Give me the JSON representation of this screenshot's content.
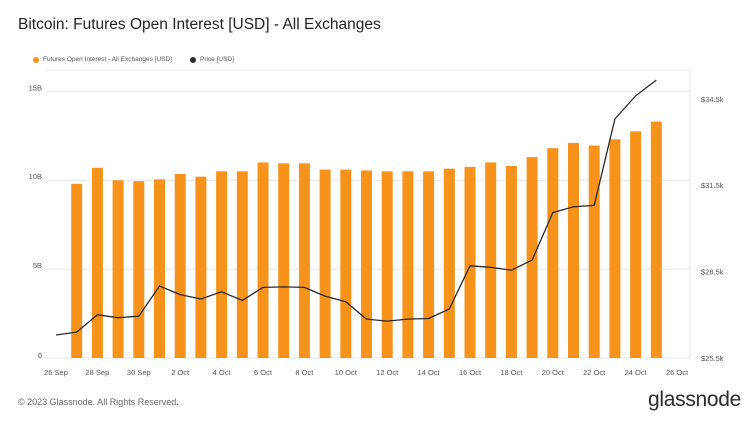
{
  "page": {
    "title": "Bitcoin: Futures Open Interest [USD] - All Exchanges",
    "footer": "© 2023 Glassnode. All Rights Reserved.",
    "brand": "glassnode"
  },
  "colors": {
    "bar": "#f7931a",
    "line": "#2b2b2b",
    "grid": "#e6e6e6",
    "axis_text": "#555555"
  },
  "chart_data": {
    "type": "bar",
    "title": "Bitcoin: Futures Open Interest [USD] - All Exchanges",
    "legend_position": "top-left",
    "grid": true,
    "x_tick_labels": [
      "26 Sep",
      "28 Sep",
      "30 Sep",
      "2 Oct",
      "4 Oct",
      "6 Oct",
      "8 Oct",
      "10 Oct",
      "12 Oct",
      "14 Oct",
      "16 Oct",
      "18 Oct",
      "20 Oct",
      "22 Oct",
      "24 Oct",
      "26 Oct"
    ],
    "categories": [
      "26 Sep",
      "27 Sep",
      "28 Sep",
      "29 Sep",
      "30 Sep",
      "1 Oct",
      "2 Oct",
      "3 Oct",
      "4 Oct",
      "5 Oct",
      "6 Oct",
      "7 Oct",
      "8 Oct",
      "9 Oct",
      "10 Oct",
      "11 Oct",
      "12 Oct",
      "13 Oct",
      "14 Oct",
      "15 Oct",
      "16 Oct",
      "17 Oct",
      "18 Oct",
      "19 Oct",
      "20 Oct",
      "21 Oct",
      "22 Oct",
      "23 Oct",
      "24 Oct",
      "25 Oct",
      "26 Oct"
    ],
    "left_axis": {
      "ticks": [
        0,
        5,
        10,
        15
      ],
      "tick_labels": [
        "0",
        "5B",
        "10B",
        "15B"
      ],
      "ylim": [
        0,
        16.2
      ]
    },
    "right_axis": {
      "ticks": [
        25500,
        28500,
        31500,
        34500
      ],
      "tick_labels": [
        "$25.5k",
        "$28.5k",
        "$31.5k",
        "$34.5k"
      ],
      "ylim": [
        25500,
        35500
      ]
    },
    "series": [
      {
        "name": "Futures Open Interest - All Exchanges [USD]",
        "kind": "bar",
        "axis": "left",
        "values": [
          null,
          9.8,
          10.7,
          10.0,
          9.95,
          10.05,
          10.35,
          10.2,
          10.5,
          10.5,
          11.0,
          10.95,
          10.95,
          10.6,
          10.6,
          10.55,
          10.5,
          10.5,
          10.5,
          10.65,
          10.75,
          11.0,
          10.8,
          11.3,
          11.8,
          12.1,
          11.95,
          12.3,
          12.75,
          13.3,
          null
        ]
      },
      {
        "name": "Price [USD]",
        "kind": "line",
        "axis": "right",
        "values": [
          26300,
          26400,
          27000,
          26900,
          26950,
          28000,
          27700,
          27550,
          27800,
          27500,
          27950,
          27970,
          27950,
          27650,
          27450,
          26850,
          26780,
          26850,
          26870,
          27200,
          28700,
          28650,
          28550,
          28900,
          30550,
          30750,
          30800,
          33800,
          34600,
          35150,
          null
        ]
      }
    ]
  }
}
